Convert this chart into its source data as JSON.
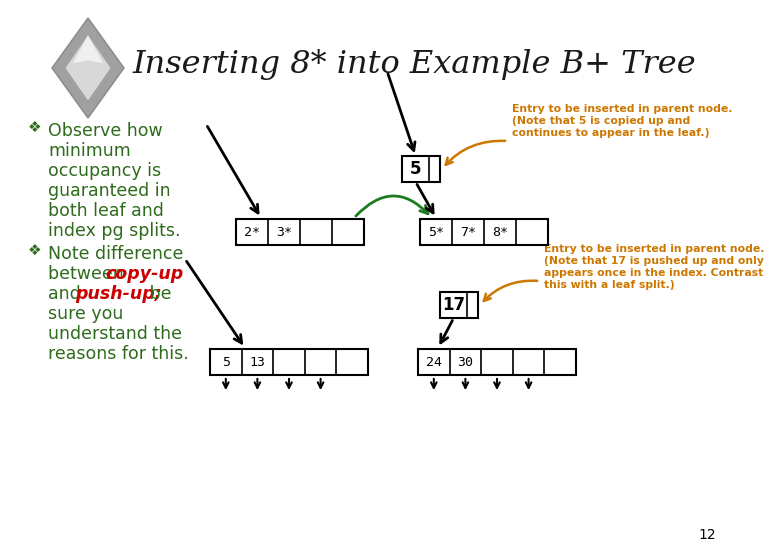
{
  "title": "Inserting 8* into Example B+ Tree",
  "title_color": "#1a1a1a",
  "title_fontsize": 23,
  "slide_bg": "#FFFFFF",
  "bullet_color": "#2E6B1C",
  "text_color": "#2E6B1C",
  "bullet1_lines": [
    "Observe how",
    "minimum",
    "occupancy is",
    "guaranteed in",
    "both leaf and",
    "index pg splits."
  ],
  "bullet2_line1": "Note difference",
  "bullet2_line2a": "between ",
  "bullet2_copy": "copy-up",
  "bullet2_line3a": "and ",
  "bullet2_push": "push-up;",
  "bullet2_line3b": " be",
  "bullet2_lines_rest": [
    "sure you",
    "understand the",
    "reasons for this."
  ],
  "orange_color": "#CC7700",
  "red_color": "#CC0000",
  "dark_green": "#1E6B1E",
  "annotation1_line1": "Entry to be inserted in parent node.",
  "annotation1_line2": "(Note that 5 is copied up and",
  "annotation1_line3": "continues to appear in the leaf.)",
  "annotation2_line1": "Entry to be inserted in parent node.",
  "annotation2_line2": "(Note that 17 is pushed up and only",
  "annotation2_line3": "appears once in the index. Contrast",
  "annotation2_line4": "this with a leaf split.)",
  "top_node_val": "5",
  "top_left_cells": [
    "2*",
    "3*",
    "",
    ""
  ],
  "top_right_cells": [
    "5*",
    "7*",
    "8*",
    ""
  ],
  "bottom_node_val": "17",
  "bottom_left_cells": [
    "5",
    "13",
    "",
    "",
    ""
  ],
  "bottom_right_cells": [
    "24",
    "30",
    "",
    "",
    ""
  ],
  "page_num": "12"
}
